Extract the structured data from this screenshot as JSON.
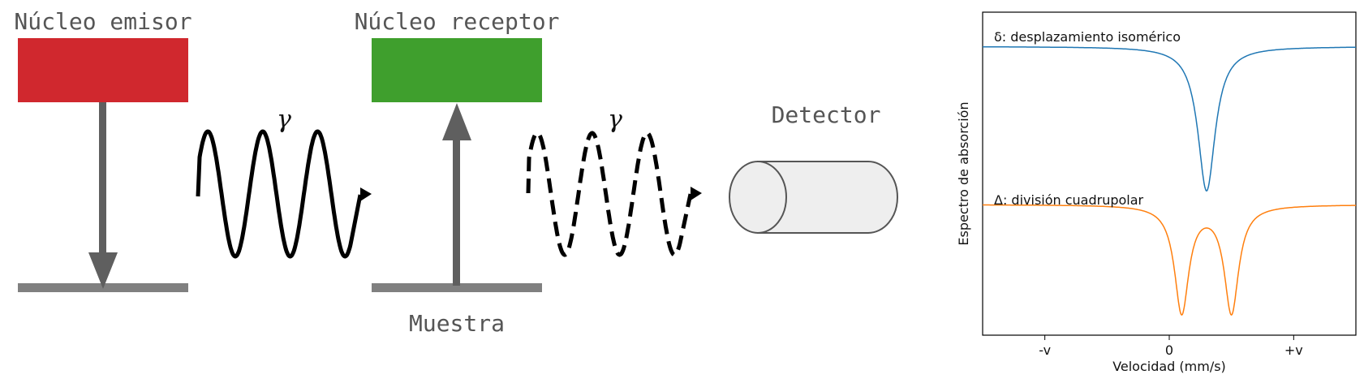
{
  "diagram": {
    "emitter_label": "Núcleo emisor",
    "receiver_label": "Núcleo receptor",
    "sample_label": "Muestra",
    "detector_label": "Detector",
    "gamma_symbol": "γ",
    "colors": {
      "emitter": "#d0282e",
      "receiver": "#3f9f2d",
      "level": "#808080",
      "arrow": "#5f5f5f",
      "wave": "#000000",
      "detector_fill": "#eeeeee",
      "detector_stroke": "#555555"
    }
  },
  "chart_data": {
    "type": "line",
    "xlabel": "Velocidad (mm/s)",
    "ylabel": "Espectro de absorción",
    "x_ticks": [
      "-v",
      "0",
      "+v"
    ],
    "x_tick_values": [
      -1,
      0,
      1
    ],
    "xlim": [
      -1.5,
      1.5
    ],
    "ylim": [
      -2.1,
      0.25
    ],
    "grid": false,
    "series": [
      {
        "name": "δ: desplazamiento isomérico",
        "color": "#1f77b4",
        "baseline": 0,
        "peaks": [
          {
            "center": 0.3,
            "depth": 1.05,
            "width": 0.085
          }
        ]
      },
      {
        "name": "Δ: división cuadrupolar",
        "color": "#ff7f0e",
        "baseline": -1.15,
        "peaks": [
          {
            "center": 0.1,
            "depth": 0.78,
            "width": 0.07
          },
          {
            "center": 0.5,
            "depth": 0.78,
            "width": 0.07
          }
        ]
      }
    ]
  }
}
